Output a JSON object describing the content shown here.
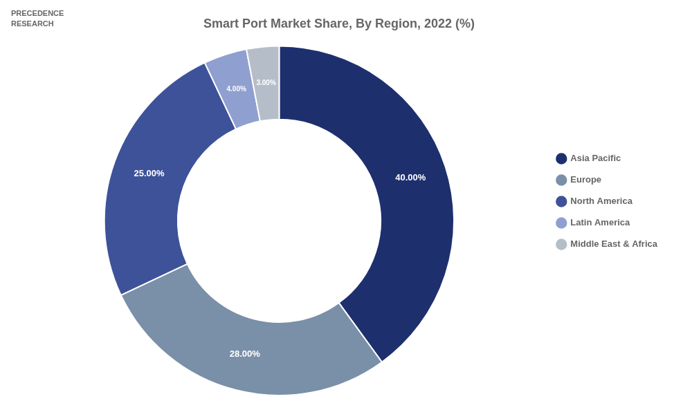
{
  "chart_data": {
    "type": "doughnut",
    "title": "Smart Port Market Share, By Region, 2022 (%)",
    "categories": [
      "Asia Pacific",
      "Europe",
      "North America",
      "Latin America",
      "Middle East & Africa"
    ],
    "values": [
      40,
      28,
      25,
      4,
      3
    ],
    "value_labels": [
      "40.00%",
      "28.00%",
      "25.00%",
      "4.00%",
      "3.00%"
    ],
    "colors": [
      "#1e2f6e",
      "#7a8fa8",
      "#3d5299",
      "#8f9fcf",
      "#b5bec8"
    ],
    "data_labels": true,
    "legend": "right",
    "annotations": [
      "PRECEDENCE",
      "RESEARCH"
    ]
  }
}
